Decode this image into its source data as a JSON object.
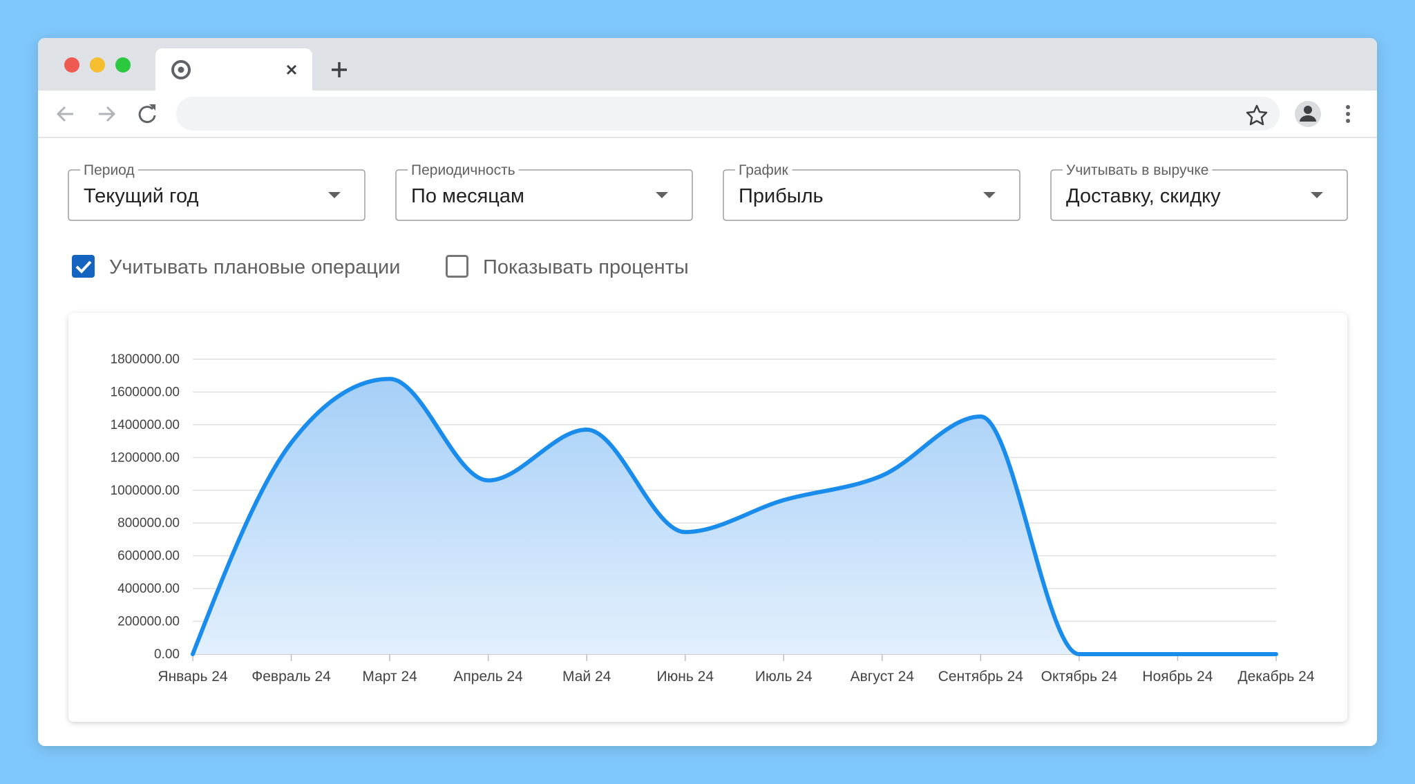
{
  "filters": [
    {
      "label": "Период",
      "value": "Текущий год"
    },
    {
      "label": "Периодичность",
      "value": "По месяцам"
    },
    {
      "label": "График",
      "value": "Прибыль"
    },
    {
      "label": "Учитывать в выручке",
      "value": "Доставку, скидку"
    }
  ],
  "checkboxes": [
    {
      "label": "Учитывать плановые операции",
      "checked": true
    },
    {
      "label": "Показывать проценты",
      "checked": false
    }
  ],
  "chart_data": {
    "type": "area",
    "categories": [
      "Январь 24",
      "Февраль 24",
      "Март 24",
      "Апрель 24",
      "Май 24",
      "Июнь 24",
      "Июль 24",
      "Август 24",
      "Сентябрь 24",
      "Октябрь 24",
      "Ноябрь 24",
      "Декабрь 24"
    ],
    "values": [
      0,
      1290000,
      1680000,
      1060000,
      1370000,
      745000,
      940000,
      1090000,
      1450000,
      0,
      0,
      0
    ],
    "color": "#1a8cec",
    "ylim": [
      0,
      1800000
    ],
    "yticks": [
      {
        "value": 0,
        "label": "0.00"
      },
      {
        "value": 200000,
        "label": "200000.00"
      },
      {
        "value": 400000,
        "label": "400000.00"
      },
      {
        "value": 600000,
        "label": "600000.00"
      },
      {
        "value": 800000,
        "label": "800000.00"
      },
      {
        "value": 1000000,
        "label": "1000000.00"
      },
      {
        "value": 1200000,
        "label": "1200000.00"
      },
      {
        "value": 1400000,
        "label": "1400000.00"
      },
      {
        "value": 1600000,
        "label": "1600000.00"
      },
      {
        "value": 1800000,
        "label": "1800000.00"
      }
    ],
    "grid": true
  }
}
